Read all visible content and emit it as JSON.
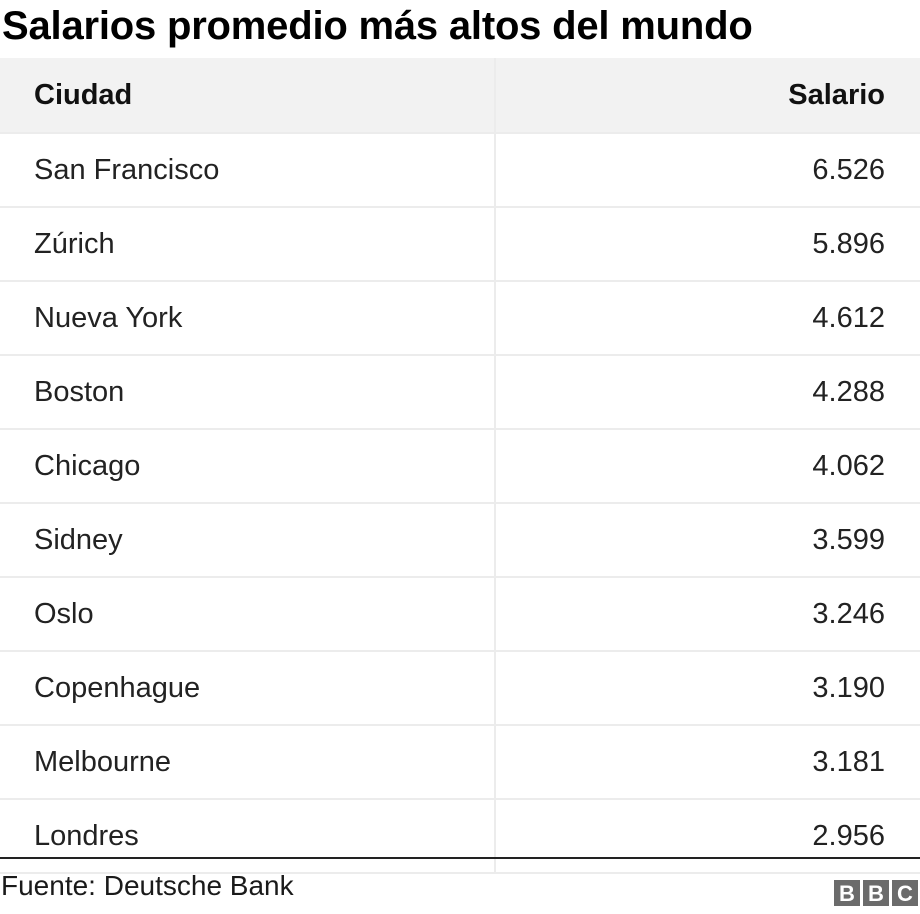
{
  "title": "Salarios promedio más altos del mundo",
  "chart_data": {
    "type": "table",
    "title": "Salarios promedio más altos del mundo",
    "columns": [
      "Ciudad",
      "Salario"
    ],
    "rows": [
      {
        "city": "San Francisco",
        "salary": "6.526"
      },
      {
        "city": "Zúrich",
        "salary": "5.896"
      },
      {
        "city": "Nueva York",
        "salary": "4.612"
      },
      {
        "city": "Boston",
        "salary": "4.288"
      },
      {
        "city": "Chicago",
        "salary": "4.062"
      },
      {
        "city": "Sidney",
        "salary": "3.599"
      },
      {
        "city": "Oslo",
        "salary": "3.246"
      },
      {
        "city": "Copenhague",
        "salary": "3.190"
      },
      {
        "city": "Melbourne",
        "salary": "3.181"
      },
      {
        "city": "Londres",
        "salary": "2.956"
      }
    ]
  },
  "footer": {
    "source": "Fuente: Deutsche Bank",
    "logo": [
      "B",
      "B",
      "C"
    ]
  },
  "colors": {
    "header_bg": "#f2f2f2",
    "border": "#ececec",
    "logo_bg": "#6b6b6b"
  }
}
